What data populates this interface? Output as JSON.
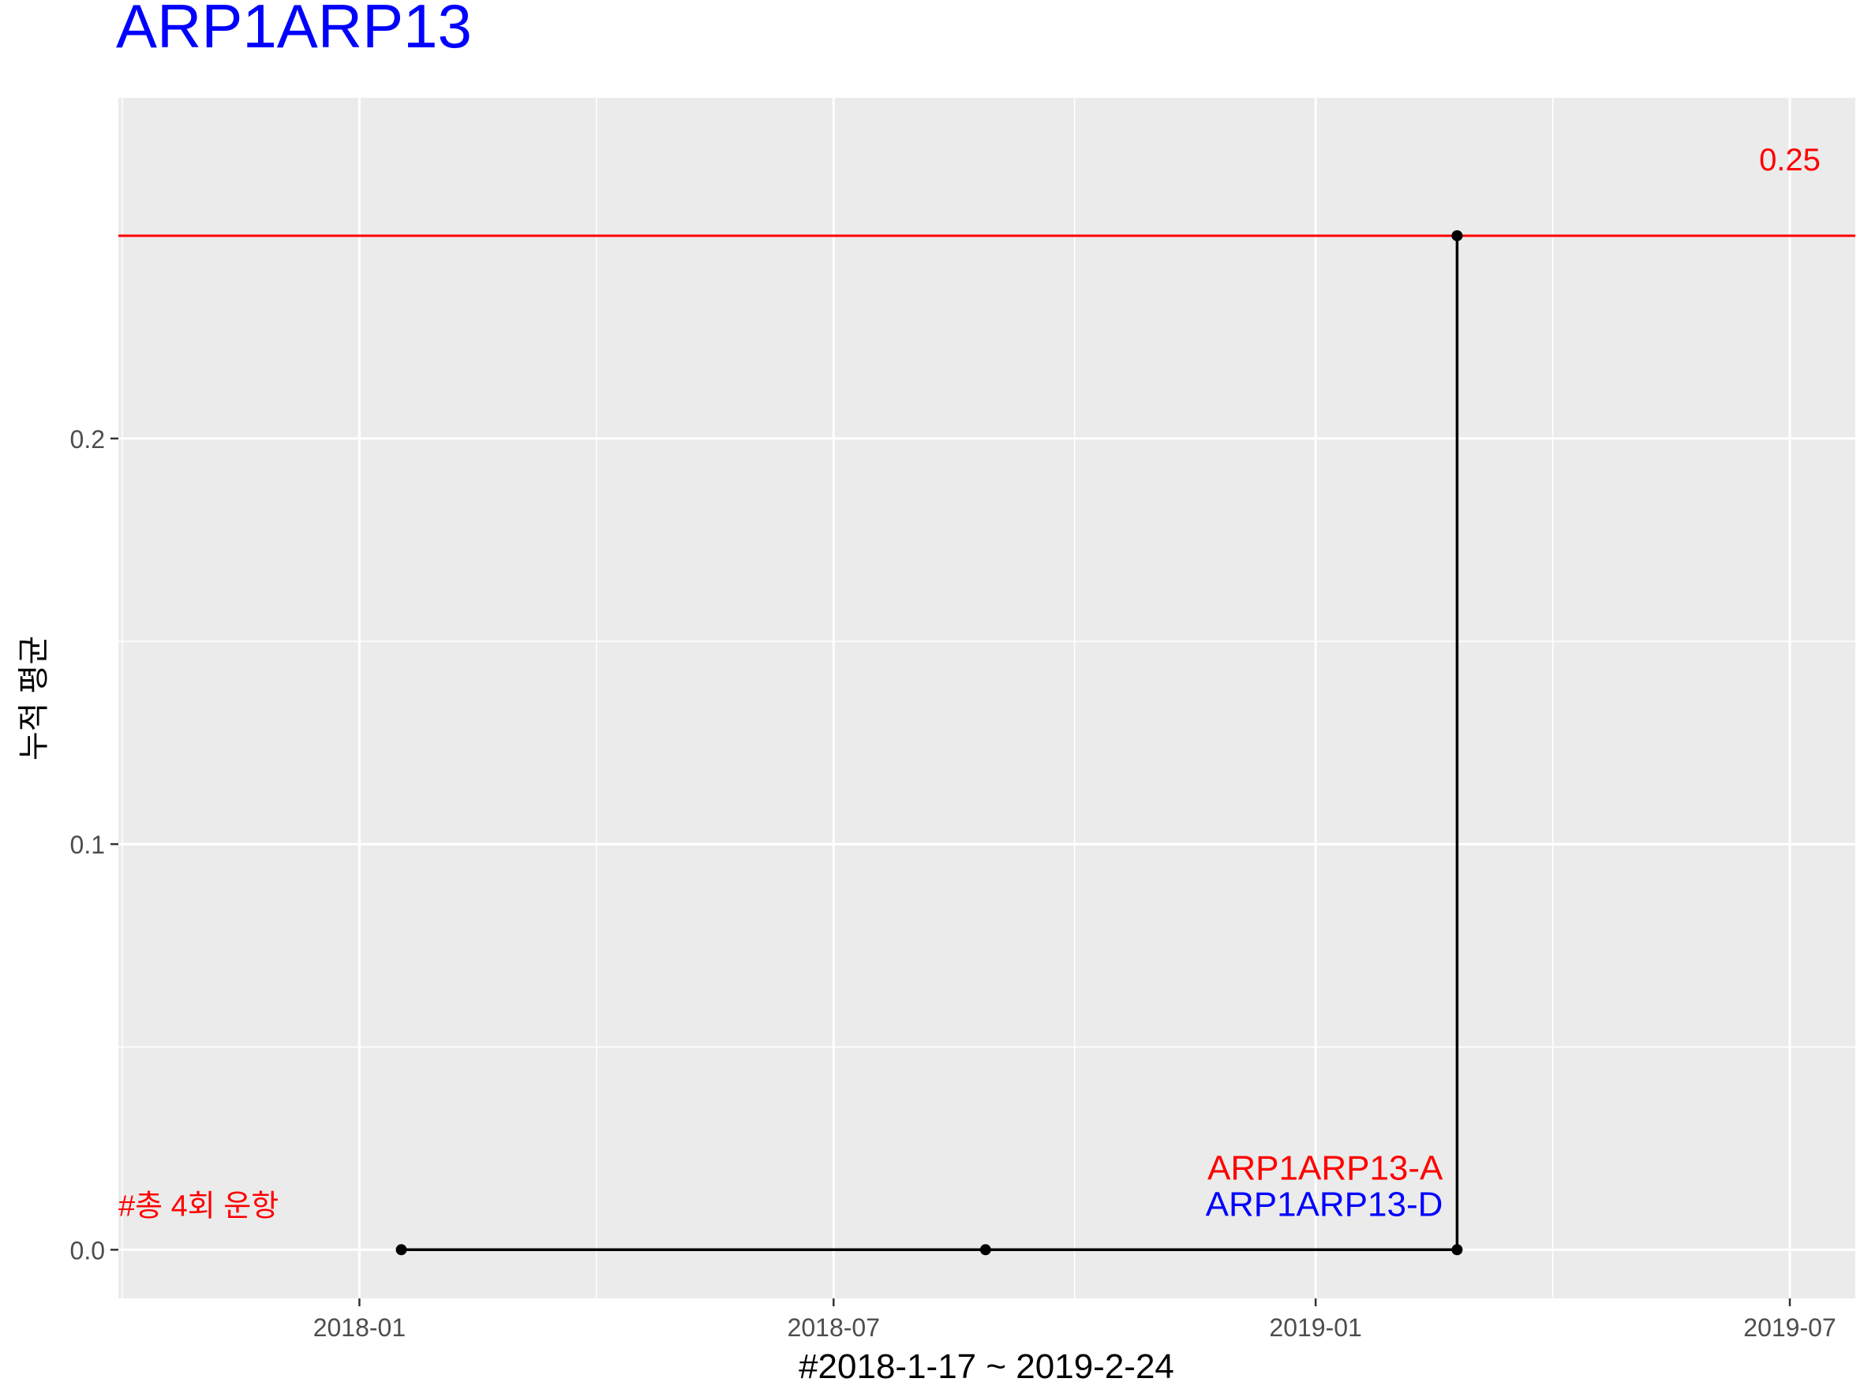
{
  "chart_data": {
    "type": "line",
    "title": "ARP1ARP13",
    "title_color": "#0000FF",
    "xlabel": "#2018-1-17 ~ 2019-2-24",
    "ylabel": "누적 평균",
    "x_tick_labels": [
      "2018-01",
      "2018-07",
      "2019-01",
      "2019-07"
    ],
    "x_tick_dates": [
      "2018-01-01",
      "2018-07-01",
      "2019-01-01",
      "2019-07-01"
    ],
    "x_range": [
      "2017-10-01",
      "2019-07-26"
    ],
    "y_tick_labels": [
      "0.0",
      "0.1",
      "0.2"
    ],
    "y_tick_values": [
      0.0,
      0.1,
      0.2
    ],
    "y_minor_gridlines": [
      0.05,
      0.15
    ],
    "ylim": [
      -0.012,
      0.284
    ],
    "grid": true,
    "panel_background": "#EBEBEB",
    "series": [
      {
        "step": "hv",
        "color": "#000000",
        "points": [
          {
            "x": "2018-01-17",
            "y": 0.0
          },
          {
            "x": "2018-08-28",
            "y": 0.0
          },
          {
            "x": "2019-02-24",
            "y": 0.0
          },
          {
            "x": "2019-02-24",
            "y": 0.25
          }
        ]
      }
    ],
    "reference_line": {
      "y": 0.25,
      "color": "#FF0000",
      "label": "0.25"
    },
    "annotations": [
      {
        "text": "#총 4회 운항",
        "color": "#FF0000",
        "x": "2017-10-01",
        "y": 0.011
      },
      {
        "text": "ARP1ARP13-A",
        "color": "#FF0000",
        "x": "2019-02-24",
        "y": 0.02
      },
      {
        "text": "ARP1ARP13-D",
        "color": "#0000FF",
        "x": "2019-02-24",
        "y": 0.011
      }
    ]
  }
}
